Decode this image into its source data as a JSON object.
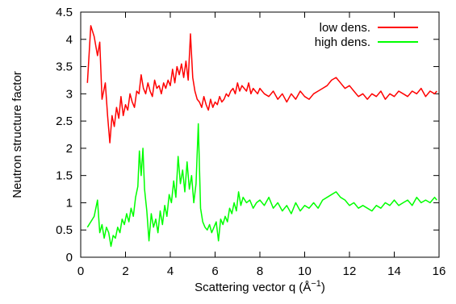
{
  "chart_data": {
    "type": "line",
    "xlabel": "Scattering vector q (Å",
    "xlabel_sup": "−1",
    "xlabel_close": ")",
    "ylabel": "Neutron structure factor",
    "xlim": [
      0,
      16
    ],
    "ylim": [
      0,
      4.5
    ],
    "xticks": [
      0,
      2,
      4,
      6,
      8,
      10,
      12,
      14,
      16
    ],
    "xtick_labels": [
      "0",
      "2",
      "4",
      "6",
      "8",
      "10",
      "12",
      "14",
      "16"
    ],
    "yticks": [
      0,
      0.5,
      1,
      1.5,
      2,
      2.5,
      3,
      3.5,
      4,
      4.5
    ],
    "ytick_labels": [
      "0",
      "0.5",
      "1",
      "1.5",
      "2",
      "2.5",
      "3",
      "3.5",
      "4",
      "4.5"
    ],
    "grid": false,
    "legend_position": "top-right",
    "series": [
      {
        "name": "low dens.",
        "color": "#ff0000",
        "x": [
          0.3,
          0.45,
          0.6,
          0.75,
          0.85,
          0.95,
          1.1,
          1.2,
          1.3,
          1.4,
          1.5,
          1.6,
          1.7,
          1.8,
          1.9,
          2.0,
          2.1,
          2.2,
          2.3,
          2.4,
          2.5,
          2.6,
          2.7,
          2.8,
          2.9,
          3.0,
          3.1,
          3.2,
          3.3,
          3.4,
          3.5,
          3.6,
          3.7,
          3.8,
          3.9,
          4.0,
          4.1,
          4.2,
          4.3,
          4.4,
          4.5,
          4.6,
          4.7,
          4.8,
          4.9,
          5.0,
          5.1,
          5.2,
          5.3,
          5.4,
          5.5,
          5.6,
          5.7,
          5.8,
          5.9,
          6.0,
          6.1,
          6.2,
          6.3,
          6.4,
          6.5,
          6.6,
          6.7,
          6.8,
          6.9,
          7.0,
          7.1,
          7.2,
          7.3,
          7.4,
          7.5,
          7.6,
          7.7,
          7.8,
          7.9,
          8.0,
          8.2,
          8.4,
          8.6,
          8.8,
          9.0,
          9.2,
          9.4,
          9.6,
          9.8,
          10.0,
          10.2,
          10.4,
          10.6,
          10.8,
          11.0,
          11.2,
          11.4,
          11.6,
          11.8,
          12.0,
          12.2,
          12.4,
          12.6,
          12.8,
          13.0,
          13.2,
          13.4,
          13.6,
          13.8,
          14.0,
          14.2,
          14.4,
          14.6,
          14.8,
          15.0,
          15.2,
          15.4,
          15.6,
          15.8,
          15.9
        ],
        "y": [
          3.2,
          4.25,
          4.05,
          3.7,
          3.95,
          2.9,
          3.2,
          2.6,
          2.1,
          2.6,
          2.4,
          2.75,
          2.55,
          2.95,
          2.6,
          2.8,
          2.7,
          3.0,
          2.85,
          2.75,
          3.05,
          3.0,
          3.35,
          3.1,
          3.0,
          3.2,
          3.05,
          2.95,
          3.25,
          3.1,
          3.15,
          3.0,
          3.2,
          3.1,
          3.25,
          3.15,
          3.45,
          3.2,
          3.5,
          3.35,
          3.55,
          3.3,
          3.6,
          3.25,
          4.1,
          3.3,
          3.05,
          2.9,
          2.85,
          2.75,
          2.95,
          2.8,
          2.7,
          2.9,
          2.75,
          2.85,
          2.8,
          2.95,
          2.85,
          2.9,
          3.0,
          2.95,
          3.05,
          3.1,
          3.0,
          3.2,
          3.05,
          3.15,
          3.1,
          3.05,
          3.2,
          3.0,
          3.1,
          3.05,
          3.0,
          3.1,
          3.0,
          2.95,
          3.05,
          2.9,
          3.0,
          2.85,
          3.0,
          2.9,
          3.05,
          2.95,
          2.9,
          3.0,
          3.05,
          3.1,
          3.15,
          3.25,
          3.3,
          3.2,
          3.1,
          3.15,
          3.05,
          2.95,
          3.0,
          2.9,
          3.0,
          2.95,
          3.05,
          2.9,
          3.0,
          2.95,
          3.05,
          3.0,
          2.95,
          3.05,
          3.0,
          3.1,
          2.95,
          3.05,
          3.0,
          3.05
        ]
      },
      {
        "name": "high dens.",
        "color": "#00ff00",
        "x": [
          0.3,
          0.45,
          0.6,
          0.75,
          0.85,
          0.95,
          1.05,
          1.15,
          1.25,
          1.35,
          1.45,
          1.55,
          1.65,
          1.75,
          1.85,
          1.95,
          2.05,
          2.15,
          2.25,
          2.35,
          2.45,
          2.55,
          2.62,
          2.7,
          2.78,
          2.85,
          2.95,
          3.05,
          3.15,
          3.25,
          3.35,
          3.45,
          3.55,
          3.65,
          3.75,
          3.85,
          3.95,
          4.05,
          4.15,
          4.25,
          4.35,
          4.45,
          4.55,
          4.65,
          4.75,
          4.85,
          4.95,
          5.05,
          5.15,
          5.25,
          5.35,
          5.45,
          5.55,
          5.65,
          5.75,
          5.85,
          5.95,
          6.05,
          6.15,
          6.25,
          6.35,
          6.45,
          6.55,
          6.65,
          6.75,
          6.85,
          6.95,
          7.05,
          7.15,
          7.25,
          7.4,
          7.55,
          7.7,
          7.85,
          8.0,
          8.2,
          8.4,
          8.6,
          8.8,
          9.0,
          9.2,
          9.4,
          9.6,
          9.8,
          10.0,
          10.2,
          10.4,
          10.6,
          10.8,
          11.0,
          11.2,
          11.4,
          11.6,
          11.8,
          12.0,
          12.2,
          12.4,
          12.6,
          12.8,
          13.0,
          13.2,
          13.4,
          13.6,
          13.8,
          14.0,
          14.2,
          14.4,
          14.6,
          14.8,
          15.0,
          15.2,
          15.4,
          15.6,
          15.8,
          15.9
        ],
        "y": [
          0.55,
          0.65,
          0.75,
          1.05,
          0.45,
          0.6,
          0.35,
          0.55,
          0.45,
          0.2,
          0.4,
          0.35,
          0.55,
          0.45,
          0.7,
          0.6,
          0.8,
          0.65,
          0.9,
          0.75,
          1.1,
          1.3,
          1.95,
          1.5,
          2.0,
          1.25,
          0.85,
          0.3,
          0.8,
          0.55,
          0.7,
          0.45,
          0.85,
          0.6,
          0.95,
          0.75,
          1.15,
          1.0,
          1.4,
          1.1,
          1.85,
          1.35,
          1.6,
          1.2,
          1.75,
          1.25,
          1.5,
          1.0,
          1.35,
          2.45,
          0.9,
          0.65,
          0.55,
          0.5,
          0.6,
          0.45,
          0.55,
          0.65,
          0.3,
          0.7,
          0.6,
          0.75,
          0.65,
          0.9,
          0.8,
          1.0,
          0.85,
          1.2,
          0.95,
          1.1,
          1.0,
          1.05,
          0.9,
          1.0,
          1.05,
          0.95,
          1.1,
          0.9,
          1.0,
          0.85,
          0.95,
          0.8,
          1.0,
          0.85,
          0.95,
          0.9,
          1.0,
          0.9,
          1.05,
          1.1,
          1.15,
          1.2,
          1.1,
          1.05,
          0.95,
          1.0,
          0.9,
          0.95,
          0.9,
          0.85,
          0.95,
          0.9,
          1.0,
          0.95,
          1.05,
          0.95,
          1.0,
          1.05,
          0.95,
          1.1,
          1.0,
          1.05,
          1.0,
          1.1,
          1.05
        ]
      }
    ]
  }
}
